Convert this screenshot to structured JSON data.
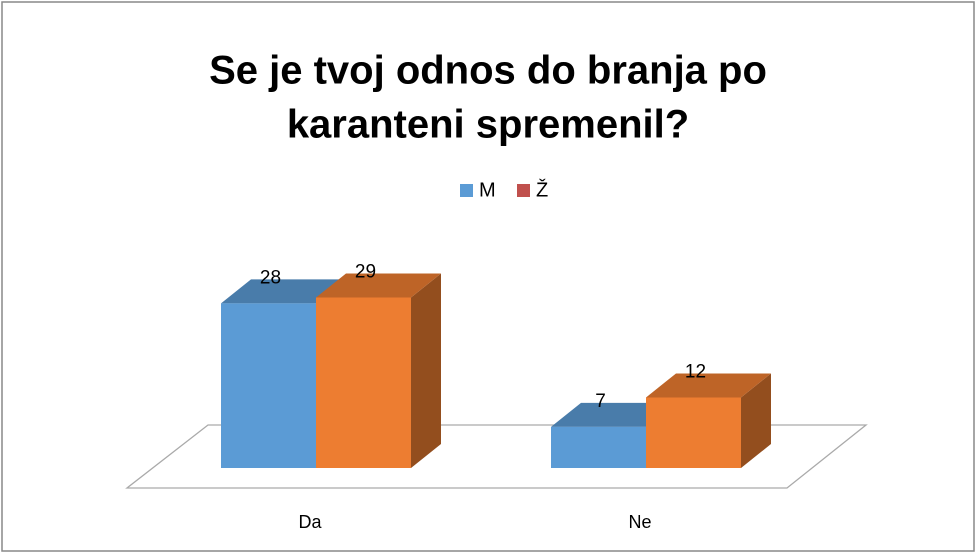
{
  "chart_data": {
    "type": "bar3d",
    "title": [
      "Se je tvoj odnos do branja po",
      "karanteni spremenil?"
    ],
    "categories": [
      "Da",
      "Ne"
    ],
    "series": [
      {
        "name": "M",
        "color": "#5b9bd5",
        "legend_color": "#5b9bd5",
        "values": [
          28,
          7
        ]
      },
      {
        "name": "Ž",
        "color": "#ed7d31",
        "legend_color": "#c0504d",
        "values": [
          29,
          12
        ]
      }
    ],
    "legend": "top",
    "data_labels": true
  }
}
